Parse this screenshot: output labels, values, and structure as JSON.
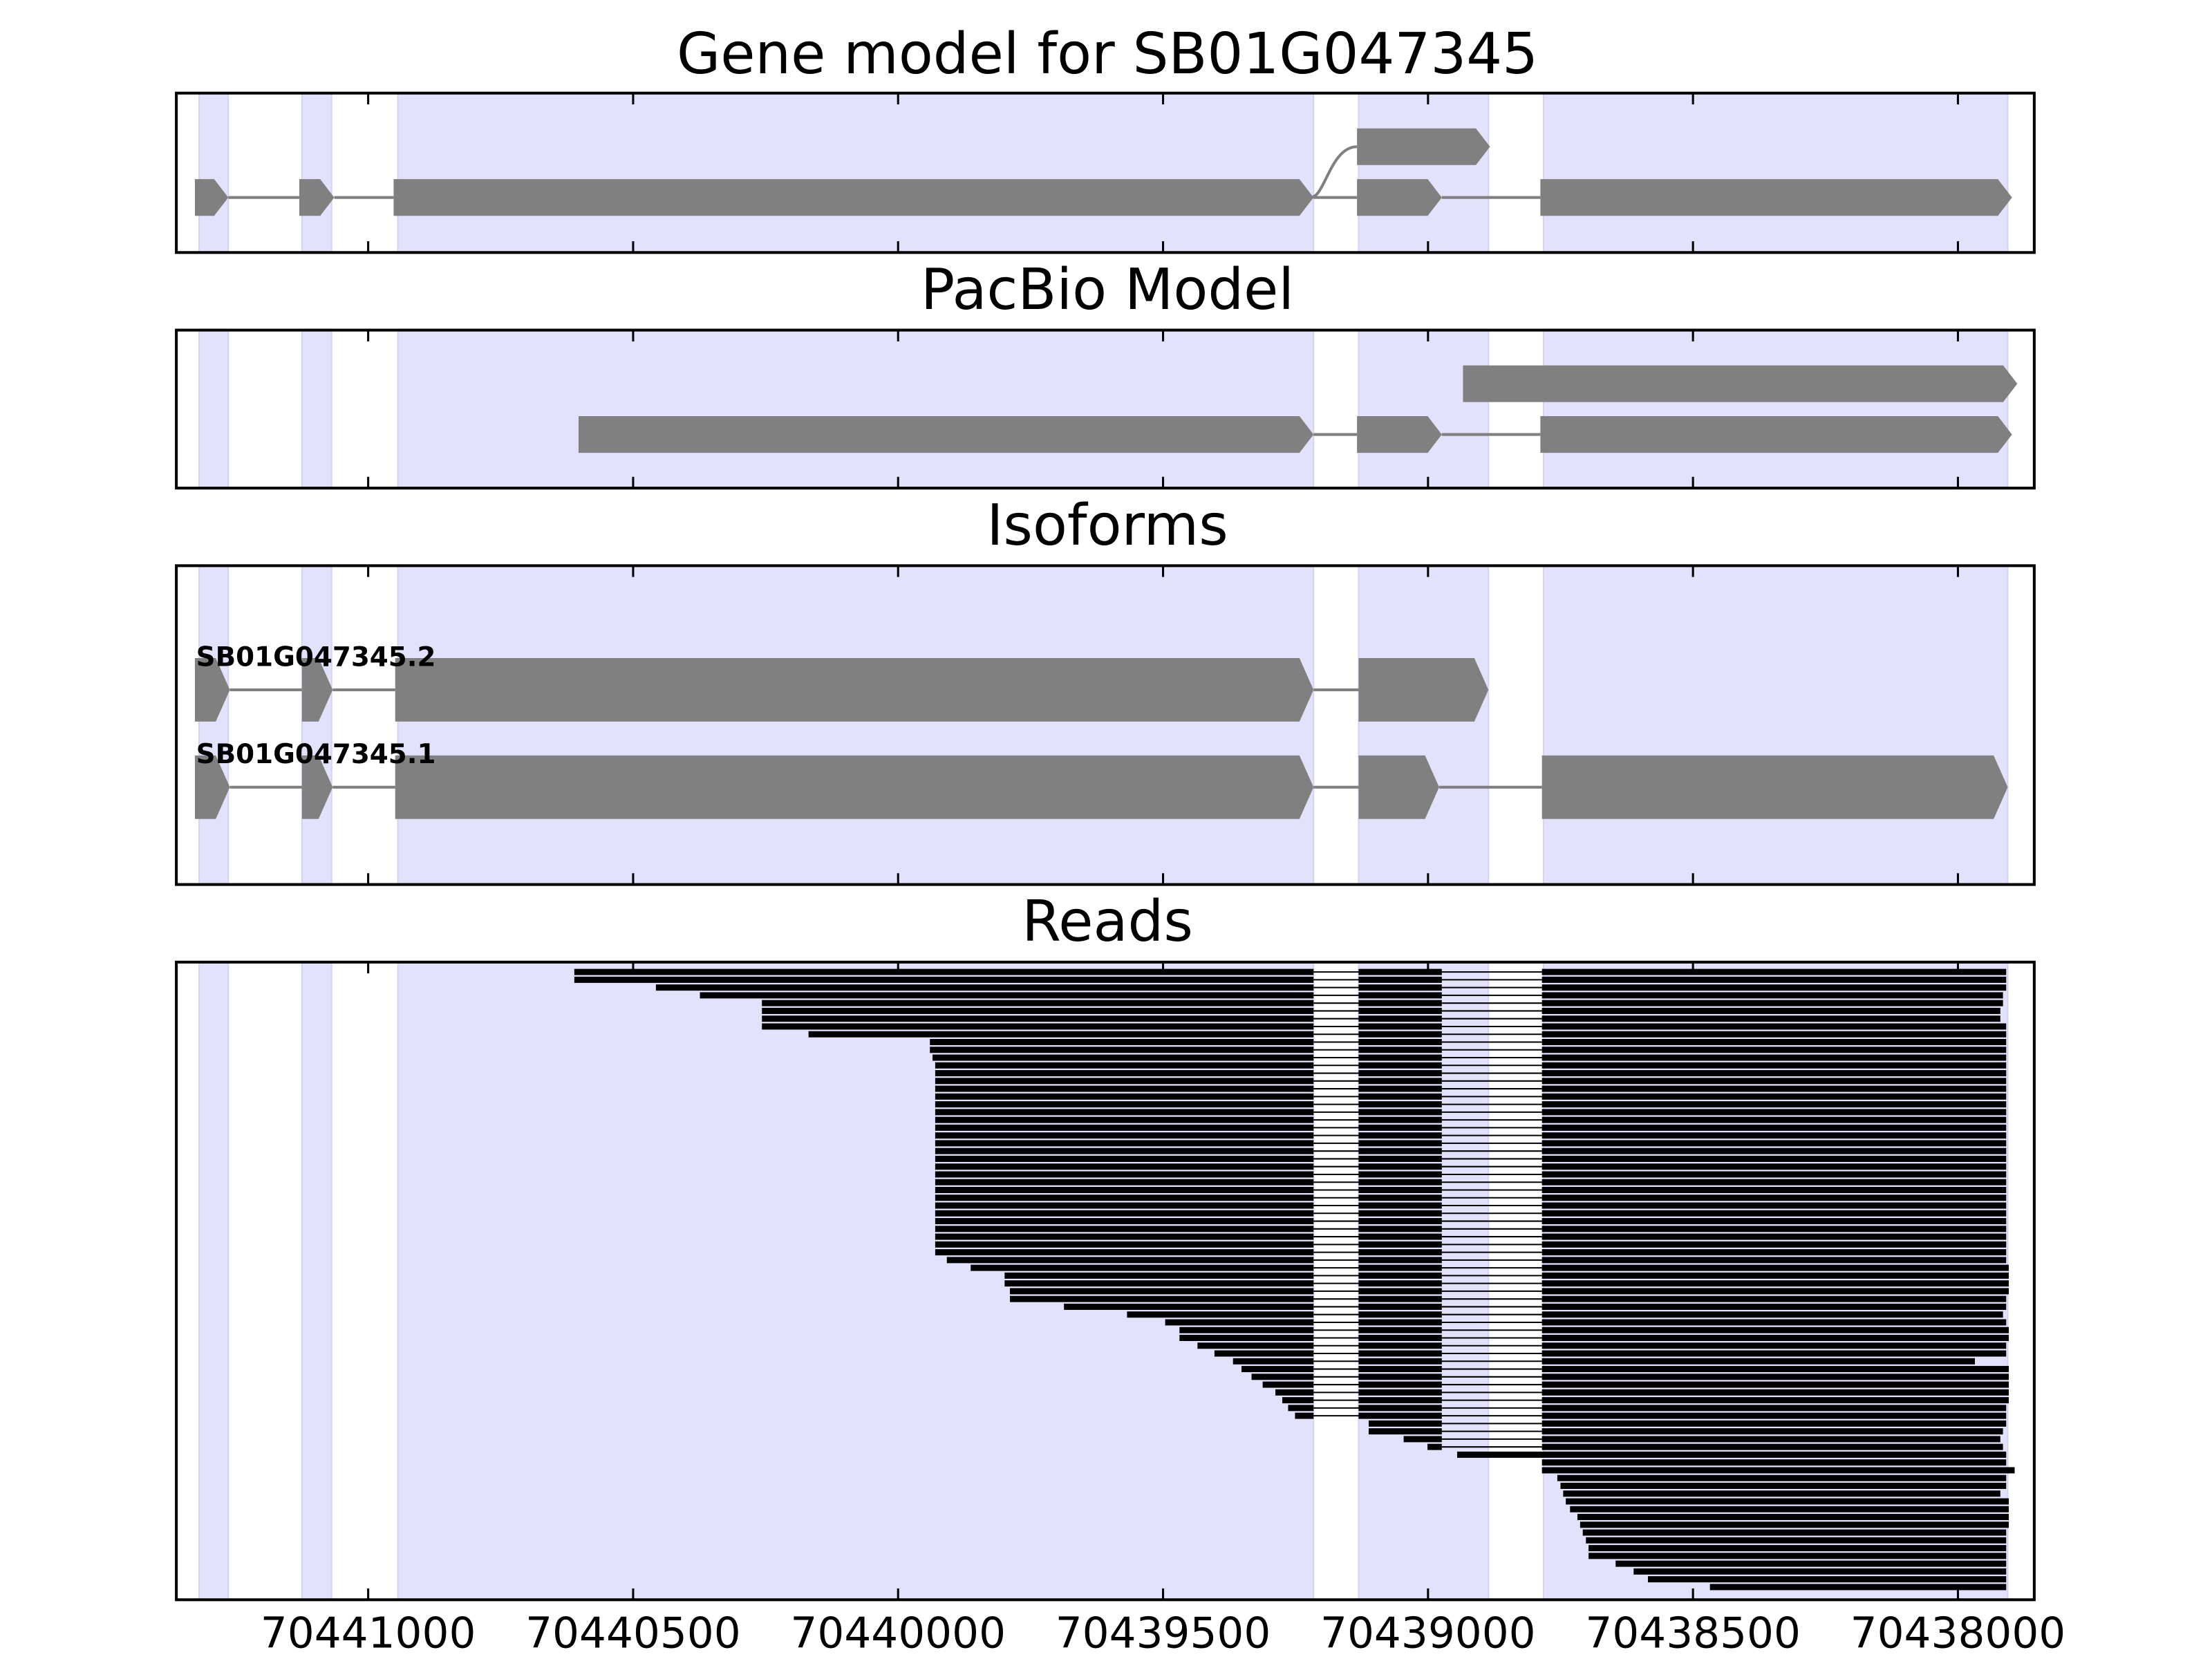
{
  "chart_data": {
    "type": "gene-track",
    "xlim": [
      70441362,
      70437856
    ],
    "xticks": [
      70441000,
      70440500,
      70440000,
      70439500,
      70439000,
      70438500,
      70438000
    ],
    "xtick_labels": [
      "70441000",
      "70440500",
      "70440000",
      "70439500",
      "70439000",
      "70438500",
      "70438000"
    ],
    "colors": {
      "shade": "#e2e2fd",
      "exon": "#808080",
      "read": "#000000",
      "axis": "#000000"
    },
    "shaded_regions": [
      [
        70441319,
        70441264
      ],
      [
        70441125,
        70441069
      ],
      [
        70440944,
        70439216
      ],
      [
        70439131,
        70438886
      ],
      [
        70438782,
        70437906
      ]
    ],
    "panels": [
      {
        "title": "Gene model for SB01G047345",
        "rows": [
          {
            "label": "",
            "exons": [
              [
                70441327,
                70441264
              ],
              [
                70441130,
                70441064
              ],
              [
                70440952,
                70439216
              ],
              [
                70439134,
                70438974
              ],
              [
                70438788,
                70437898
              ]
            ]
          },
          {
            "label": "",
            "branch_from": 70439216,
            "exons": [
              [
                70439134,
                70438883
              ]
            ]
          }
        ]
      },
      {
        "title": "PacBio Model",
        "rows": [
          {
            "label": "",
            "exons": [
              [
                70440603,
                70439216
              ],
              [
                70439134,
                70438974
              ],
              [
                70438788,
                70437898
              ]
            ]
          },
          {
            "label": "",
            "exons": [
              [
                70438934,
                70437888
              ]
            ]
          }
        ]
      },
      {
        "title": "Isoforms",
        "rows": [
          {
            "label": "SB01G047345.1",
            "exons": [
              [
                70441327,
                70441261
              ],
              [
                70441125,
                70441067
              ],
              [
                70440949,
                70439216
              ],
              [
                70439131,
                70438979
              ],
              [
                70438785,
                70437906
              ]
            ]
          },
          {
            "label": "SB01G047345.2",
            "exons": [
              [
                70441327,
                70441261
              ],
              [
                70441125,
                70441067
              ],
              [
                70440949,
                70439216
              ],
              [
                70439131,
                70438886
              ]
            ]
          }
        ]
      },
      {
        "title": "Reads",
        "introns": [
          [
            70439216,
            70439131
          ],
          [
            70438974,
            70438785
          ]
        ],
        "reads": [
          [
            70440611,
            70437909
          ],
          [
            70440611,
            70437909
          ],
          [
            70440457,
            70437909
          ],
          [
            70440374,
            70437915
          ],
          [
            70440257,
            70437915
          ],
          [
            70440257,
            70437920
          ],
          [
            70440257,
            70437920
          ],
          [
            70440257,
            70437909
          ],
          [
            70440169,
            70437909
          ],
          [
            70439940,
            70437909
          ],
          [
            70439940,
            70437909
          ],
          [
            70439935,
            70437909
          ],
          [
            70439930,
            70437909
          ],
          [
            70439930,
            70437909
          ],
          [
            70439930,
            70437909
          ],
          [
            70439930,
            70437909
          ],
          [
            70439930,
            70437909
          ],
          [
            70439930,
            70437909
          ],
          [
            70439930,
            70437909
          ],
          [
            70439930,
            70437909
          ],
          [
            70439930,
            70437909
          ],
          [
            70439930,
            70437909
          ],
          [
            70439930,
            70437909
          ],
          [
            70439930,
            70437909
          ],
          [
            70439930,
            70437909
          ],
          [
            70439930,
            70437909
          ],
          [
            70439930,
            70437909
          ],
          [
            70439930,
            70437909
          ],
          [
            70439930,
            70437909
          ],
          [
            70439930,
            70437909
          ],
          [
            70439930,
            70437909
          ],
          [
            70439930,
            70437909
          ],
          [
            70439930,
            70437909
          ],
          [
            70439930,
            70437909
          ],
          [
            70439930,
            70437909
          ],
          [
            70439930,
            70437909
          ],
          [
            70439930,
            70437909
          ],
          [
            70439908,
            70437909
          ],
          [
            70439863,
            70437904
          ],
          [
            70439799,
            70437904
          ],
          [
            70439799,
            70437904
          ],
          [
            70439789,
            70437904
          ],
          [
            70439789,
            70437909
          ],
          [
            70439687,
            70437909
          ],
          [
            70439568,
            70437915
          ],
          [
            70439496,
            70437909
          ],
          [
            70439469,
            70437904
          ],
          [
            70439469,
            70437904
          ],
          [
            70439435,
            70437909
          ],
          [
            70439403,
            70437909
          ],
          [
            70439368,
            70437968
          ],
          [
            70439352,
            70437904
          ],
          [
            70439333,
            70437904
          ],
          [
            70439312,
            70437904
          ],
          [
            70439288,
            70437904
          ],
          [
            70439275,
            70437904
          ],
          [
            70439264,
            70437909
          ],
          [
            70439251,
            70437909
          ],
          [
            70439112,
            70437909
          ],
          [
            70439112,
            70437915
          ],
          [
            70439046,
            70437920
          ],
          [
            70439001,
            70437915
          ],
          [
            70438945,
            70437909
          ],
          [
            70438785,
            70437909
          ],
          [
            70438785,
            70437893
          ],
          [
            70438756,
            70437909
          ],
          [
            70438750,
            70437909
          ],
          [
            70438745,
            70437920
          ],
          [
            70438740,
            70437904
          ],
          [
            70438732,
            70437904
          ],
          [
            70438718,
            70437904
          ],
          [
            70438713,
            70437904
          ],
          [
            70438708,
            70437909
          ],
          [
            70438702,
            70437909
          ],
          [
            70438697,
            70437909
          ],
          [
            70438697,
            70437909
          ],
          [
            70438646,
            70437909
          ],
          [
            70438612,
            70437909
          ],
          [
            70438585,
            70437909
          ],
          [
            70438468,
            70437909
          ]
        ]
      }
    ]
  }
}
